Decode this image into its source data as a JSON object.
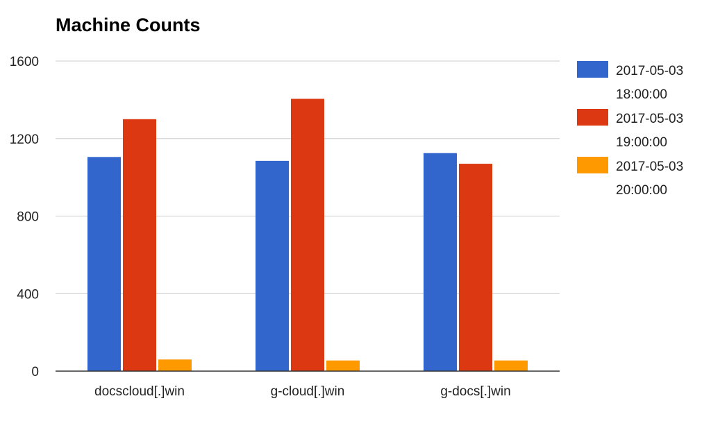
{
  "chart_data": {
    "type": "bar",
    "title": "Machine Counts",
    "xlabel": "",
    "ylabel": "",
    "ylim": [
      0,
      1600
    ],
    "yticks": [
      0,
      400,
      800,
      1200,
      1600
    ],
    "grid": true,
    "legend_position": "right",
    "categories": [
      "docscloud[.]win",
      "g-cloud[.]win",
      "g-docs[.]win"
    ],
    "series": [
      {
        "name": "2017-05-03 18:00:00",
        "name_lines": [
          "2017-05-03",
          "18:00:00"
        ],
        "color": "#3366cc",
        "values": [
          1105,
          1085,
          1125
        ]
      },
      {
        "name": "2017-05-03 19:00:00",
        "name_lines": [
          "2017-05-03",
          "19:00:00"
        ],
        "color": "#dc3912",
        "values": [
          1300,
          1405,
          1070
        ]
      },
      {
        "name": "2017-05-03 20:00:00",
        "name_lines": [
          "2017-05-03",
          "20:00:00"
        ],
        "color": "#ff9900",
        "values": [
          60,
          55,
          55
        ]
      }
    ]
  }
}
